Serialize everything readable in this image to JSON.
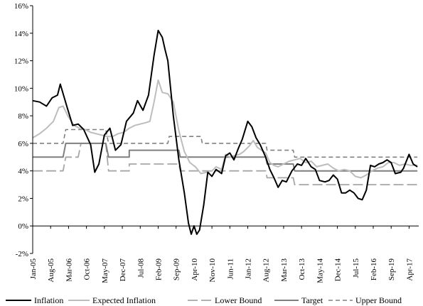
{
  "chart_data": {
    "type": "line",
    "title": "",
    "xlabel": "",
    "ylabel": "",
    "ylim": [
      -2,
      16
    ],
    "yticks": [
      "-2%",
      "0%",
      "2%",
      "4%",
      "6%",
      "8%",
      "10%",
      "12%",
      "14%",
      "16%"
    ],
    "xticks": [
      "Jan-05",
      "Aug-05",
      "Mar-06",
      "Oct-06",
      "May-07",
      "Dec-07",
      "Jul-08",
      "Feb-09",
      "Sep-09",
      "Apr-10",
      "Nov-10",
      "Jun-11",
      "Jan-12",
      "Aug-12",
      "Mar-13",
      "Oct-13",
      "May-14",
      "Dec-14",
      "Jul-15",
      "Feb-16",
      "Sep-19",
      "Apr-17"
    ],
    "grid": false,
    "legend_position": "bottom",
    "series": [
      {
        "name": "Inflation",
        "color": "#000000",
        "dash": "solid",
        "points": [
          [
            0,
            9.1
          ],
          [
            0.5,
            9.0
          ],
          [
            1.0,
            8.7
          ],
          [
            1.4,
            9.3
          ],
          [
            1.8,
            9.5
          ],
          [
            2.0,
            10.3
          ],
          [
            2.5,
            8.6
          ],
          [
            2.9,
            7.3
          ],
          [
            3.3,
            7.4
          ],
          [
            3.7,
            7.0
          ],
          [
            4.2,
            5.9
          ],
          [
            4.5,
            3.9
          ],
          [
            4.8,
            4.5
          ],
          [
            5.2,
            6.6
          ],
          [
            5.6,
            7.1
          ],
          [
            6.0,
            5.5
          ],
          [
            6.4,
            5.9
          ],
          [
            6.8,
            7.6
          ],
          [
            7.3,
            8.2
          ],
          [
            7.6,
            9.1
          ],
          [
            8.0,
            8.4
          ],
          [
            8.4,
            9.5
          ],
          [
            8.8,
            12.4
          ],
          [
            9.1,
            14.2
          ],
          [
            9.4,
            13.7
          ],
          [
            9.6,
            12.8
          ],
          [
            9.8,
            12.0
          ],
          [
            10.2,
            8.0
          ],
          [
            10.6,
            4.8
          ],
          [
            11.0,
            2.4
          ],
          [
            11.3,
            0.2
          ],
          [
            11.5,
            -0.6
          ],
          [
            11.7,
            0.0
          ],
          [
            11.9,
            -0.6
          ],
          [
            12.1,
            -0.3
          ],
          [
            12.4,
            1.5
          ],
          [
            12.7,
            3.9
          ],
          [
            13.0,
            3.6
          ],
          [
            13.3,
            4.1
          ],
          [
            13.7,
            3.8
          ],
          [
            14.0,
            5.1
          ],
          [
            14.3,
            5.3
          ],
          [
            14.6,
            4.8
          ],
          [
            14.9,
            5.6
          ],
          [
            15.2,
            6.3
          ],
          [
            15.6,
            7.6
          ],
          [
            15.9,
            7.2
          ],
          [
            16.2,
            6.4
          ],
          [
            16.5,
            5.9
          ],
          [
            16.9,
            5.0
          ],
          [
            17.2,
            4.1
          ],
          [
            17.5,
            3.5
          ],
          [
            17.8,
            2.8
          ],
          [
            18.1,
            3.3
          ],
          [
            18.4,
            3.2
          ],
          [
            18.8,
            4.0
          ],
          [
            19.2,
            4.5
          ],
          [
            19.5,
            4.4
          ],
          [
            19.8,
            4.9
          ],
          [
            20.2,
            4.3
          ],
          [
            20.5,
            4.1
          ],
          [
            20.8,
            3.3
          ],
          [
            21.2,
            3.2
          ],
          [
            21.5,
            3.3
          ],
          [
            21.8,
            3.7
          ],
          [
            22.1,
            3.4
          ],
          [
            22.4,
            2.4
          ],
          [
            22.7,
            2.4
          ],
          [
            23.0,
            2.6
          ],
          [
            23.3,
            2.4
          ],
          [
            23.6,
            2.0
          ],
          [
            23.9,
            1.9
          ],
          [
            24.2,
            2.6
          ],
          [
            24.5,
            4.4
          ],
          [
            24.8,
            4.3
          ],
          [
            25.1,
            4.5
          ],
          [
            25.4,
            4.6
          ],
          [
            25.7,
            4.8
          ],
          [
            26.0,
            4.6
          ],
          [
            26.3,
            3.8
          ],
          [
            26.7,
            3.9
          ],
          [
            26.9,
            4.2
          ],
          [
            27.3,
            5.2
          ],
          [
            27.6,
            4.5
          ],
          [
            27.9,
            4.3
          ]
        ]
      },
      {
        "name": "Expected Inflation",
        "color": "#bdbdbd",
        "dash": "solid",
        "points": [
          [
            0,
            6.4
          ],
          [
            0.5,
            6.7
          ],
          [
            1.0,
            7.1
          ],
          [
            1.5,
            7.6
          ],
          [
            1.9,
            8.6
          ],
          [
            2.2,
            8.7
          ],
          [
            2.6,
            7.9
          ],
          [
            3.0,
            7.3
          ],
          [
            3.4,
            7.1
          ],
          [
            3.8,
            7.0
          ],
          [
            4.2,
            6.8
          ],
          [
            4.6,
            6.7
          ],
          [
            5.0,
            6.6
          ],
          [
            5.4,
            6.5
          ],
          [
            5.8,
            6.5
          ],
          [
            6.2,
            6.7
          ],
          [
            6.6,
            6.8
          ],
          [
            7.0,
            7.1
          ],
          [
            7.4,
            7.3
          ],
          [
            7.8,
            7.4
          ],
          [
            8.2,
            7.5
          ],
          [
            8.5,
            7.6
          ],
          [
            8.8,
            9.0
          ],
          [
            9.1,
            10.6
          ],
          [
            9.4,
            9.7
          ],
          [
            9.8,
            9.6
          ],
          [
            10.2,
            9.0
          ],
          [
            10.6,
            6.9
          ],
          [
            11.0,
            5.4
          ],
          [
            11.4,
            4.6
          ],
          [
            11.8,
            4.3
          ],
          [
            12.2,
            3.8
          ],
          [
            12.6,
            3.9
          ],
          [
            13.0,
            4.0
          ],
          [
            13.3,
            4.3
          ],
          [
            13.7,
            4.1
          ],
          [
            14.0,
            5.2
          ],
          [
            14.3,
            5.0
          ],
          [
            14.6,
            5.1
          ],
          [
            15.0,
            5.2
          ],
          [
            15.3,
            5.4
          ],
          [
            15.7,
            5.8
          ],
          [
            16.0,
            6.2
          ],
          [
            16.3,
            5.7
          ],
          [
            16.6,
            5.5
          ],
          [
            16.9,
            5.3
          ],
          [
            17.2,
            4.6
          ],
          [
            17.5,
            4.4
          ],
          [
            17.8,
            4.3
          ],
          [
            18.2,
            4.5
          ],
          [
            18.6,
            4.7
          ],
          [
            19.0,
            4.8
          ],
          [
            19.4,
            4.9
          ],
          [
            19.8,
            4.6
          ],
          [
            20.2,
            4.7
          ],
          [
            20.6,
            4.3
          ],
          [
            21.0,
            4.4
          ],
          [
            21.4,
            4.5
          ],
          [
            21.8,
            4.2
          ],
          [
            22.2,
            4.0
          ],
          [
            22.6,
            4.1
          ],
          [
            23.0,
            4.0
          ],
          [
            23.4,
            3.6
          ],
          [
            23.8,
            3.5
          ],
          [
            24.2,
            3.7
          ],
          [
            24.6,
            4.0
          ],
          [
            25.0,
            4.2
          ],
          [
            25.4,
            4.3
          ],
          [
            25.8,
            4.6
          ],
          [
            26.2,
            4.6
          ],
          [
            26.6,
            4.4
          ],
          [
            27.0,
            4.5
          ],
          [
            27.4,
            4.4
          ],
          [
            27.9,
            4.4
          ]
        ]
      },
      {
        "name": "Lower Bound",
        "color": "#a6a6a6",
        "dash": "long",
        "points": [
          [
            0,
            4.0
          ],
          [
            2.2,
            4.0
          ],
          [
            2.4,
            5.0
          ],
          [
            3.3,
            5.0
          ],
          [
            3.5,
            6.0
          ],
          [
            5.3,
            6.0
          ],
          [
            5.5,
            4.0
          ],
          [
            7.0,
            4.0
          ],
          [
            7.0,
            4.5
          ],
          [
            10.6,
            4.5
          ],
          [
            10.7,
            4.0
          ],
          [
            12.2,
            4.0
          ],
          [
            12.3,
            4.0
          ],
          [
            16.9,
            4.0
          ],
          [
            17.0,
            3.5
          ],
          [
            18.9,
            3.5
          ],
          [
            19.0,
            3.0
          ],
          [
            27.9,
            3.0
          ]
        ]
      },
      {
        "name": "Target",
        "color": "#7f7f7f",
        "dash": "solid",
        "points": [
          [
            0,
            5.0
          ],
          [
            2.2,
            5.0
          ],
          [
            2.4,
            6.0
          ],
          [
            5.3,
            6.0
          ],
          [
            5.5,
            5.0
          ],
          [
            7.0,
            5.0
          ],
          [
            7.0,
            5.5
          ],
          [
            10.6,
            5.5
          ],
          [
            10.7,
            5.0
          ],
          [
            16.9,
            5.0
          ],
          [
            17.0,
            4.5
          ],
          [
            18.9,
            4.5
          ],
          [
            19.0,
            4.0
          ],
          [
            27.9,
            4.0
          ]
        ]
      },
      {
        "name": "Upper Bound",
        "color": "#808080",
        "dash": "short",
        "points": [
          [
            0,
            6.0
          ],
          [
            2.2,
            6.0
          ],
          [
            2.4,
            7.0
          ],
          [
            5.3,
            7.0
          ],
          [
            5.5,
            6.0
          ],
          [
            9.8,
            6.0
          ],
          [
            9.9,
            6.5
          ],
          [
            12.2,
            6.5
          ],
          [
            12.3,
            6.0
          ],
          [
            16.9,
            6.0
          ],
          [
            17.0,
            5.5
          ],
          [
            18.9,
            5.5
          ],
          [
            19.0,
            5.0
          ],
          [
            27.9,
            5.0
          ]
        ]
      }
    ]
  }
}
